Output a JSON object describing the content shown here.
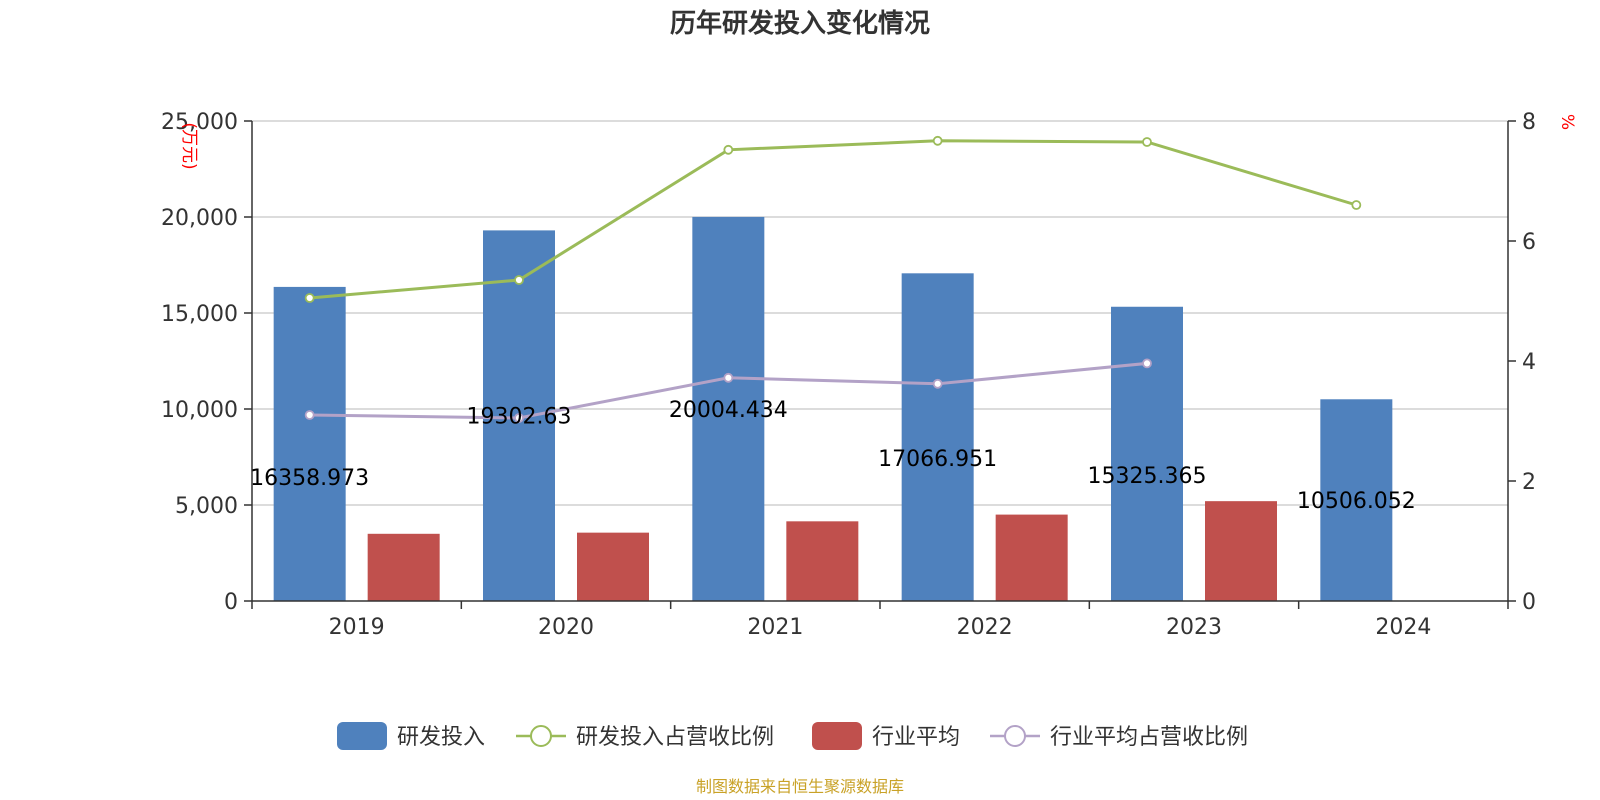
{
  "chart_data": {
    "type": "bar",
    "title": "历年研发投入变化情况",
    "categories": [
      "2019",
      "2020",
      "2021",
      "2022",
      "2023",
      "2024"
    ],
    "y_left": {
      "unit": "(万元)",
      "range": [
        0,
        25000
      ],
      "ticks": [
        "0",
        "5,000",
        "10,000",
        "15,000",
        "20,000",
        "25,000"
      ],
      "tick_values": [
        0,
        5000,
        10000,
        15000,
        20000,
        25000
      ]
    },
    "y_right": {
      "unit": "%",
      "range": [
        0,
        8
      ],
      "ticks": [
        "0",
        "2",
        "4",
        "6",
        "8"
      ],
      "tick_values": [
        0,
        2,
        4,
        6,
        8
      ]
    },
    "series": [
      {
        "name": "研发投入",
        "kind": "bar",
        "axis": "left",
        "color": "#4f81bd",
        "values": [
          16358.973,
          19302.63,
          20004.434,
          17066.951,
          15325.365,
          10506.052
        ],
        "labels": [
          "16358.973",
          "19302.63",
          "20004.434",
          "17066.951",
          "15325.365",
          "10506.052"
        ]
      },
      {
        "name": "研发投入占营收比例",
        "kind": "line",
        "axis": "right",
        "color": "#9bbb59",
        "values": [
          5.05,
          5.35,
          7.52,
          7.67,
          7.65,
          6.6
        ]
      },
      {
        "name": "行业平均",
        "kind": "bar",
        "axis": "left",
        "color": "#c0504d",
        "values": [
          3500,
          3560,
          4150,
          4500,
          5200,
          null
        ]
      },
      {
        "name": "行业平均占营收比例",
        "kind": "line",
        "axis": "right",
        "color": "#b3a2c7",
        "values": [
          3.1,
          3.05,
          3.72,
          3.62,
          3.96,
          null
        ]
      }
    ],
    "grid": true,
    "legend_position": "bottom"
  },
  "source_note": "制图数据来自恒生聚源数据库"
}
